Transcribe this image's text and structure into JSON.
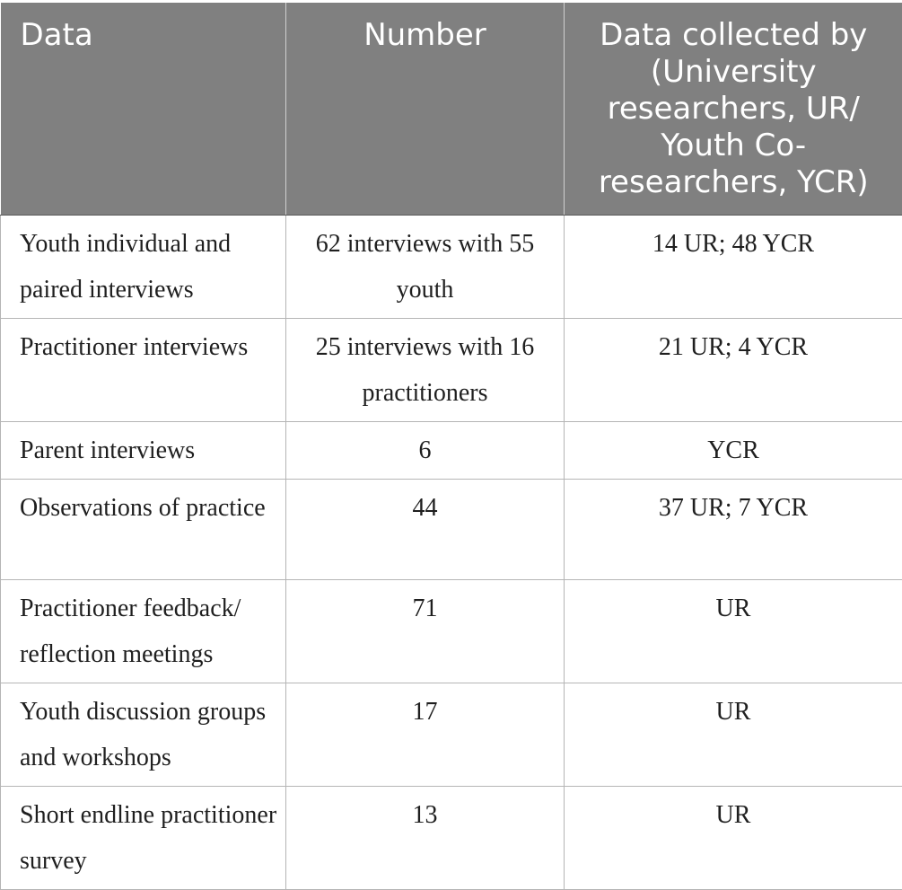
{
  "table": {
    "headers": [
      "Data",
      "Number",
      "Data collected by (University researchers, UR/ Youth Co-researchers, YCR)"
    ],
    "rows": [
      [
        "Youth individual and paired interviews",
        "62 interviews with 55 youth",
        "14 UR; 48 YCR"
      ],
      [
        "Practitioner interviews",
        "25 interviews with 16 practitioners",
        "21 UR; 4 YCR"
      ],
      [
        "Parent interviews",
        "6",
        "YCR"
      ],
      [
        "Observations of practice",
        "44",
        "37 UR; 7 YCR"
      ],
      [
        "Practitioner feedback/ reflection meetings",
        "71",
        "UR"
      ],
      [
        "Youth discussion groups and workshops",
        "17",
        "UR"
      ],
      [
        "Short endline practitioner survey",
        "13",
        "UR"
      ]
    ]
  },
  "colors": {
    "header_background": "#808080",
    "header_text": "#ffffff",
    "body_text": "#1f1f1f",
    "grid_lines": "#b5b5b5"
  }
}
